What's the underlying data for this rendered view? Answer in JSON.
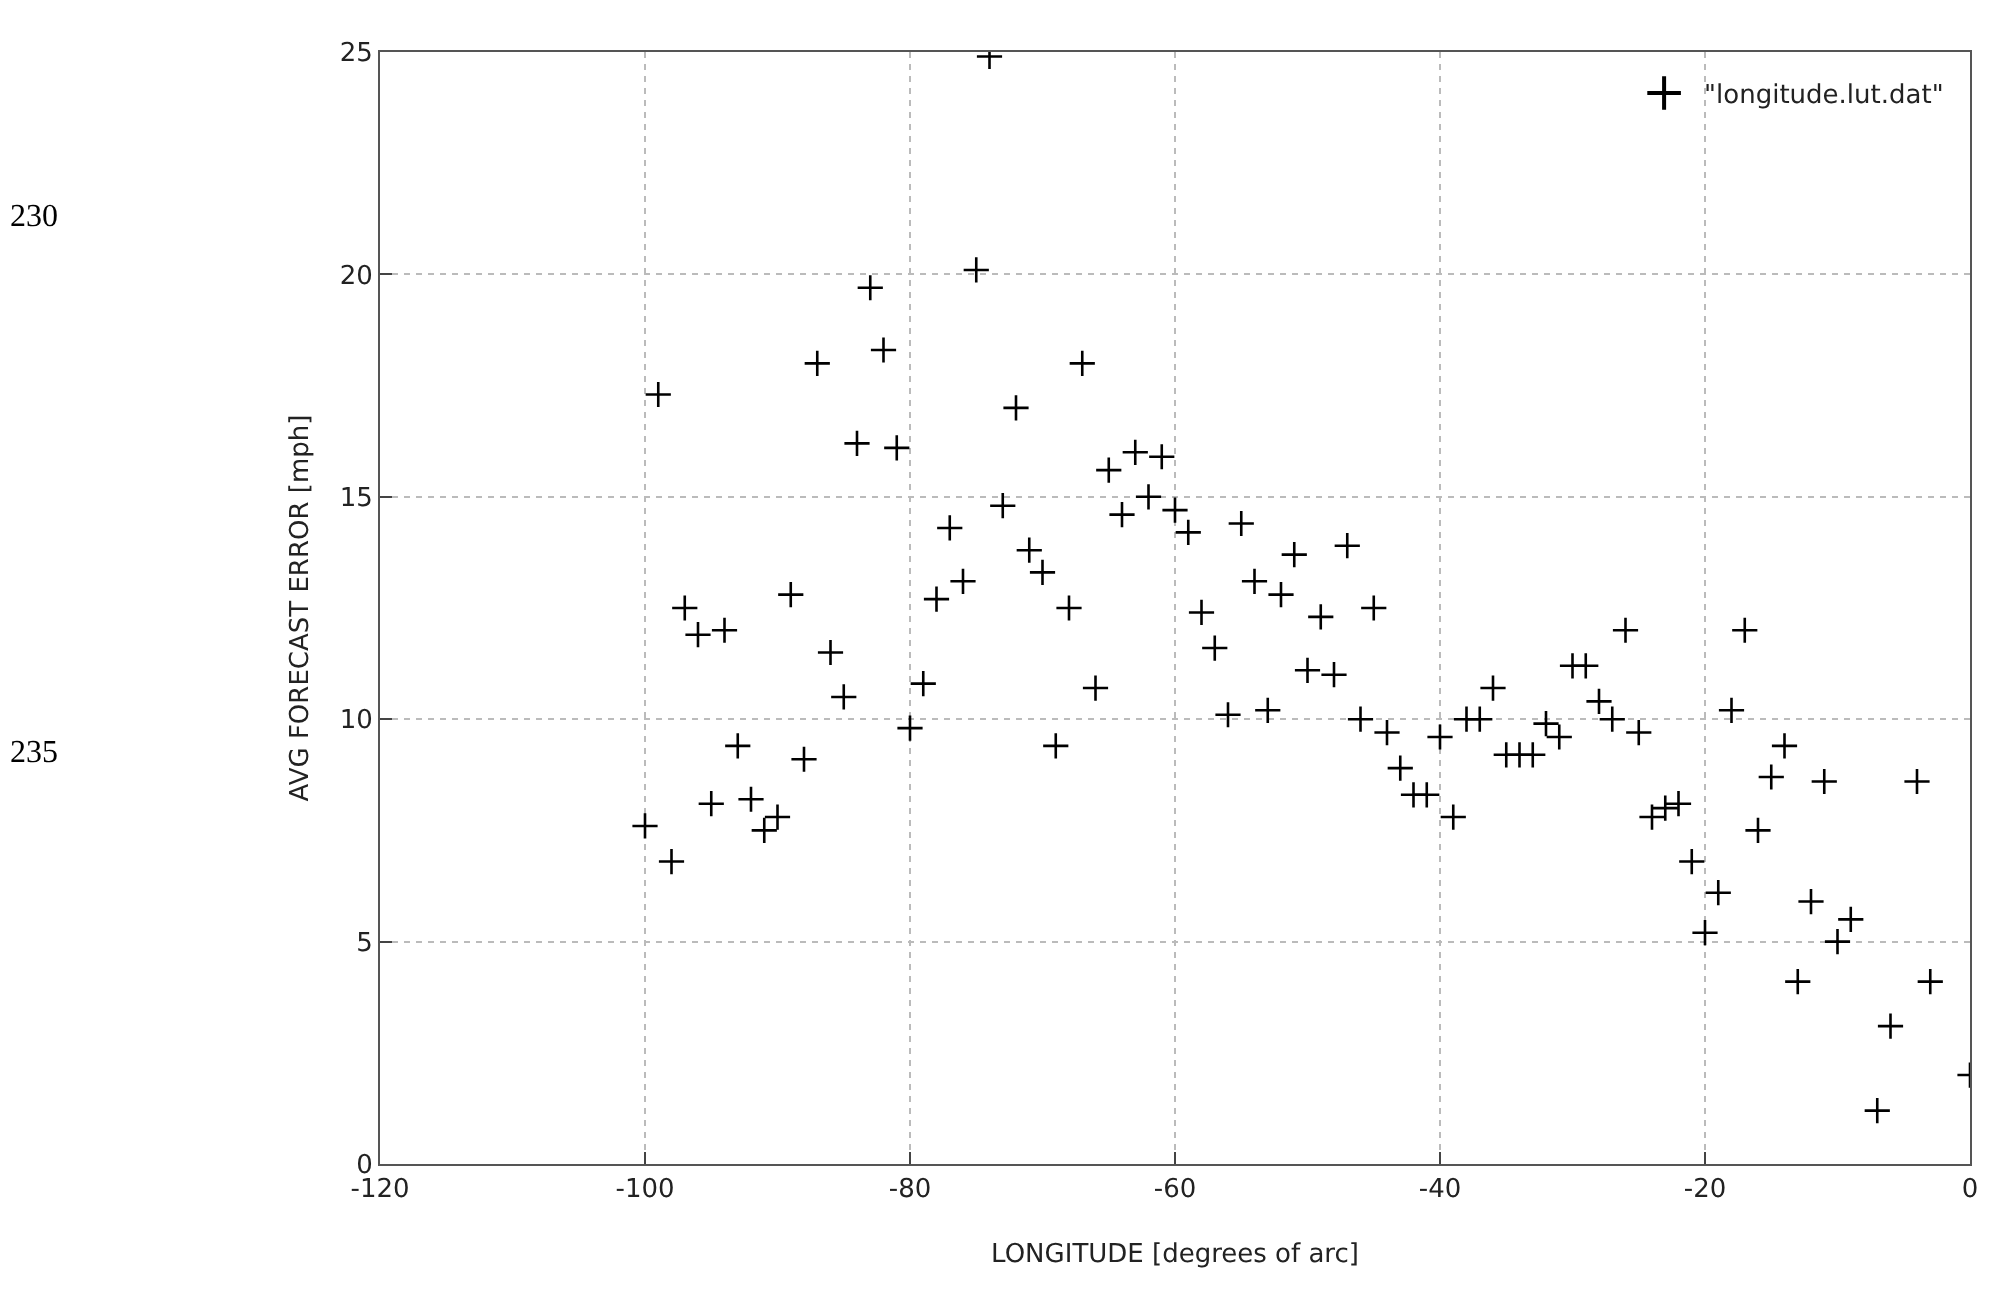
{
  "chart_data": {
    "type": "scatter",
    "xlabel": "LONGITUDE [degrees of arc]",
    "ylabel": "AVG FORECAST ERROR [mph]",
    "x": [
      -100,
      -99,
      -98,
      -97,
      -96,
      -95,
      -94,
      -93,
      -92,
      -91,
      -90,
      -89,
      -88,
      -87,
      -86,
      -85,
      -84,
      -83,
      -82,
      -81,
      -80,
      -79,
      -78,
      -77,
      -76,
      -75,
      -74,
      -73,
      -72,
      -71,
      -70,
      -69,
      -68,
      -67,
      -66,
      -65,
      -64,
      -63,
      -62,
      -61,
      -60,
      -59,
      -58,
      -57,
      -56,
      -55,
      -54,
      -53,
      -52,
      -51,
      -50,
      -49,
      -48,
      -47,
      -46,
      -45,
      -44,
      -43,
      -42,
      -41,
      -40,
      -39,
      -38,
      -37,
      -36,
      -35,
      -34,
      -33,
      -32,
      -31,
      -30,
      -29,
      -28,
      -27,
      -26,
      -25,
      -24,
      -23,
      -22,
      -21,
      -20,
      -19,
      -18,
      -17,
      -16,
      -15,
      -14,
      -13,
      -12,
      -11,
      -10,
      -9,
      -7,
      -6,
      -4,
      -3,
      0
    ],
    "series": [
      {
        "name": "\"longitude.lut.dat\"",
        "color": "#000000",
        "values": [
          7.6,
          17.3,
          6.8,
          12.5,
          11.9,
          8.1,
          12.0,
          9.4,
          8.2,
          7.5,
          7.8,
          12.8,
          9.1,
          18.0,
          11.5,
          10.5,
          16.2,
          19.7,
          18.3,
          16.1,
          9.8,
          10.8,
          12.7,
          14.3,
          13.1,
          20.1,
          24.9,
          14.8,
          17.0,
          13.8,
          13.3,
          9.4,
          12.5,
          18.0,
          10.7,
          15.6,
          14.6,
          16.0,
          15.0,
          15.9,
          14.7,
          14.2,
          12.4,
          11.6,
          10.1,
          14.4,
          13.1,
          10.2,
          12.8,
          13.7,
          11.1,
          12.3,
          11.0,
          13.9,
          10.0,
          12.5,
          9.7,
          8.9,
          8.3,
          8.3,
          9.6,
          7.8,
          10.0,
          10.0,
          10.7,
          9.2,
          9.2,
          9.2,
          9.9,
          9.6,
          11.2,
          11.2,
          10.4,
          10.0,
          12.0,
          9.7,
          7.8,
          8.0,
          8.1,
          6.8,
          5.2,
          6.1,
          10.2,
          12.0,
          7.5,
          8.7,
          9.4,
          4.1,
          5.9,
          8.6,
          5.0,
          5.5,
          1.2,
          3.1,
          8.6,
          4.1,
          2.0
        ]
      }
    ],
    "xlim": [
      -120,
      0
    ],
    "xticks": [
      -120,
      -100,
      -80,
      -60,
      -40,
      -20,
      0
    ],
    "ylim": [
      0,
      25
    ],
    "yticks": [
      0,
      5,
      10,
      15,
      20,
      25
    ],
    "grid": true,
    "legend": "top right",
    "marker": "cross",
    "annotations": [
      "230",
      "235"
    ]
  }
}
